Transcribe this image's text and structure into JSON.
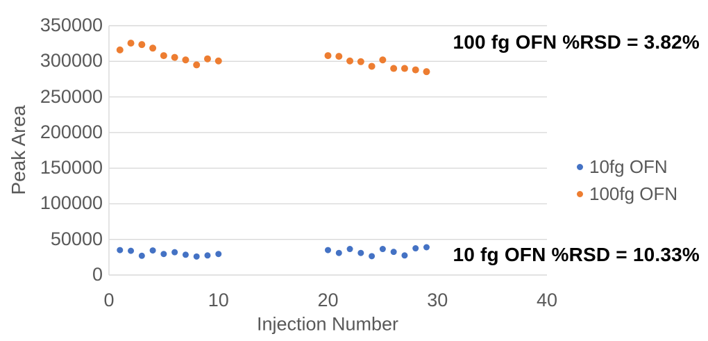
{
  "chart_data": {
    "type": "scatter",
    "title": "",
    "xlabel": "Injection Number",
    "ylabel": "Peak Area",
    "xlim": [
      0,
      40
    ],
    "ylim": [
      0,
      350000
    ],
    "x_tick_values": [
      0,
      10,
      20,
      30,
      40
    ],
    "x_tick_labels": [
      "0",
      "10",
      "20",
      "30",
      "40"
    ],
    "y_tick_values": [
      0,
      50000,
      100000,
      150000,
      200000,
      250000,
      300000,
      350000
    ],
    "y_tick_labels": [
      "0",
      "50000",
      "100000",
      "150000",
      "200000",
      "250000",
      "300000",
      "350000"
    ],
    "grid": true,
    "legend_position": "right",
    "series": [
      {
        "name": "10fg OFN",
        "color": "#4472C4",
        "marker_radius": 4.5,
        "x": [
          1,
          2,
          3,
          4,
          5,
          6,
          7,
          8,
          9,
          10,
          20,
          21,
          22,
          23,
          24,
          25,
          26,
          27,
          28,
          29
        ],
        "y": [
          35000,
          34000,
          27000,
          34500,
          29500,
          32000,
          28500,
          26000,
          27500,
          29500,
          35000,
          31000,
          36500,
          31000,
          26500,
          36500,
          32500,
          27500,
          37500,
          39000
        ]
      },
      {
        "name": "100fg OFN",
        "color": "#ED7D31",
        "marker_radius": 5,
        "x": [
          1,
          2,
          3,
          4,
          5,
          6,
          7,
          8,
          9,
          10,
          20,
          21,
          22,
          23,
          24,
          25,
          26,
          27,
          28,
          29
        ],
        "y": [
          316000,
          325500,
          323500,
          318500,
          308000,
          305500,
          302000,
          295000,
          303500,
          300500,
          308000,
          307000,
          300500,
          299500,
          293000,
          302000,
          290000,
          290000,
          288000,
          285500
        ]
      }
    ],
    "annotations": [
      {
        "text": "100 fg OFN %RSD = 3.82%"
      },
      {
        "text": "10 fg OFN %RSD = 10.33%"
      }
    ]
  },
  "colors": {
    "axis_text": "#595959",
    "gridline": "#D9D9D9",
    "annotation_text": "#000000",
    "background": "#FFFFFF"
  }
}
